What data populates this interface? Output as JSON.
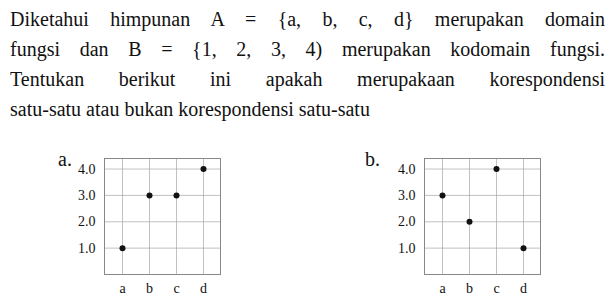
{
  "text": {
    "lines": [
      "Diketahui himpunan A = {a, b, c, d} merupakan domain",
      "fungsi dan B = {1, 2, 3, 4) merupakan kodomain fungsi.",
      "Tentukan berikut ini apakah merupakaan korespondensi",
      "satu-satu atau bukan korespondensi satu-satu"
    ]
  },
  "chart_data": [
    {
      "type": "scatter",
      "title": "a.",
      "categories": [
        "a",
        "b",
        "c",
        "d"
      ],
      "values": [
        1,
        3,
        3,
        4
      ],
      "color": "#111111",
      "ylim": [
        0,
        4.4
      ],
      "yticks": [
        1,
        2,
        3,
        4
      ],
      "grid": true
    },
    {
      "type": "scatter",
      "title": "b.",
      "categories": [
        "a",
        "b",
        "c",
        "d"
      ],
      "values": [
        3,
        2,
        4,
        1
      ],
      "color": "#111111",
      "ylim": [
        0,
        4.4
      ],
      "yticks": [
        1,
        2,
        3,
        4
      ],
      "grid": true
    }
  ]
}
